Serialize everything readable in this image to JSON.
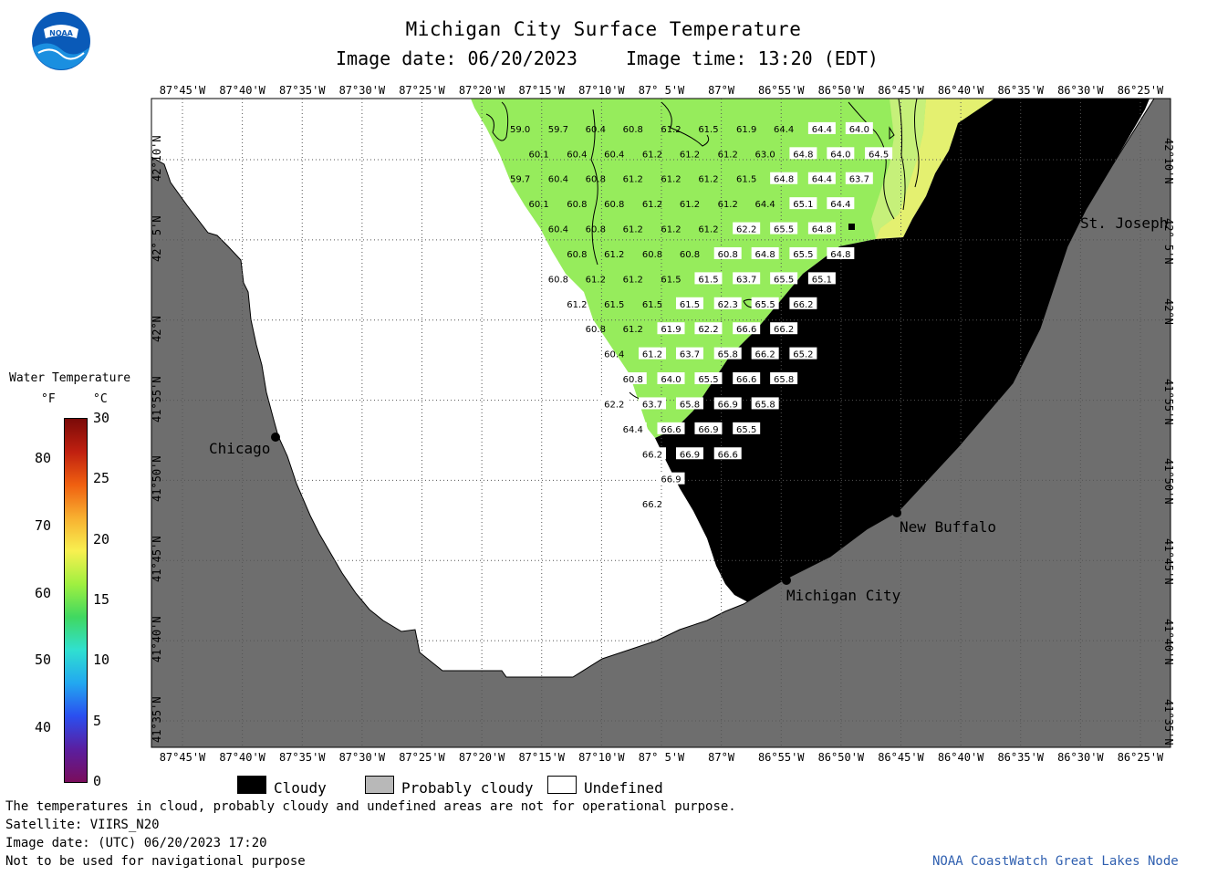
{
  "title": "Michigan City Surface Temperature",
  "subtitle": {
    "date": "Image date: 06/20/2023",
    "time": "Image time: 13:20 (EDT)"
  },
  "logo_text": "NOAA",
  "lon_labels": [
    "87°45'W",
    "87°40'W",
    "87°35'W",
    "87°30'W",
    "87°25'W",
    "87°20'W",
    "87°15'W",
    "87°10'W",
    "87° 5'W",
    "87°W",
    "86°55'W",
    "86°50'W",
    "86°45'W",
    "86°40'W",
    "86°35'W",
    "86°30'W",
    "86°25'W"
  ],
  "lat_labels": [
    "42°10'N",
    "42° 5'N",
    "42°N",
    "41°55'N",
    "41°50'N",
    "41°45'N",
    "41°40'N",
    "41°35'N"
  ],
  "legend": {
    "title": "Water Temperature",
    "unit_f": "°F",
    "unit_c": "°C",
    "f_ticks": [
      "80",
      "70",
      "60",
      "50",
      "40"
    ],
    "c_ticks": [
      "30",
      "25",
      "20",
      "15",
      "10",
      "5",
      "0"
    ],
    "colors": [
      "#7a0d5c",
      "#5a1fa0",
      "#2a4ff0",
      "#22a8f0",
      "#30e0d0",
      "#40d860",
      "#a0f040",
      "#f8f050",
      "#f8b030",
      "#f06010",
      "#c02010",
      "#7a0a08"
    ]
  },
  "key": {
    "cloudy": "Cloudy",
    "probably_cloudy": "Probably cloudy",
    "undefined": "Undefined"
  },
  "cities": [
    "Chicago",
    "St. Joseph",
    "New Buffalo",
    "Michigan City"
  ],
  "notes": [
    "The temperatures in cloud, probably cloudy and undefined areas are not for operational purpose.",
    "Satellite: VIIRS_N20",
    "Image date: (UTC) 06/20/2023  17:20",
    "Not to be used for navigational purpose"
  ],
  "credit": "NOAA CoastWatch Great Lakes Node",
  "temps": [
    {
      "v": "59.0",
      "c": "g",
      "lon": -87.28,
      "lat": 42.199
    },
    {
      "v": "59.7",
      "c": "g",
      "lon": -87.227,
      "lat": 42.199
    },
    {
      "v": "60.4",
      "c": "g",
      "lon": -87.175,
      "lat": 42.199
    },
    {
      "v": "60.8",
      "c": "g",
      "lon": -87.123,
      "lat": 42.199
    },
    {
      "v": "61.2",
      "c": "g",
      "lon": -87.07,
      "lat": 42.199
    },
    {
      "v": "61.5",
      "c": "g",
      "lon": -87.018,
      "lat": 42.199
    },
    {
      "v": "61.9",
      "c": "g",
      "lon": -86.965,
      "lat": 42.199
    },
    {
      "v": "64.4",
      "c": "g",
      "lon": -86.913,
      "lat": 42.199
    },
    {
      "v": "64.4",
      "c": "b",
      "lon": -86.86,
      "lat": 42.199
    },
    {
      "v": "64.0",
      "c": "b",
      "lon": -86.808,
      "lat": 42.199
    },
    {
      "v": "60.1",
      "c": "g",
      "lon": -87.254,
      "lat": 42.173
    },
    {
      "v": "60.4",
      "c": "g",
      "lon": -87.201,
      "lat": 42.173
    },
    {
      "v": "60.4",
      "c": "g",
      "lon": -87.149,
      "lat": 42.173
    },
    {
      "v": "61.2",
      "c": "g",
      "lon": -87.096,
      "lat": 42.173
    },
    {
      "v": "61.2",
      "c": "g",
      "lon": -87.044,
      "lat": 42.173
    },
    {
      "v": "61.2",
      "c": "g",
      "lon": -86.991,
      "lat": 42.173
    },
    {
      "v": "63.0",
      "c": "g",
      "lon": -86.939,
      "lat": 42.173
    },
    {
      "v": "64.8",
      "c": "b",
      "lon": -86.886,
      "lat": 42.173
    },
    {
      "v": "64.0",
      "c": "b",
      "lon": -86.834,
      "lat": 42.173
    },
    {
      "v": "64.5",
      "c": "b",
      "lon": -86.781,
      "lat": 42.173
    },
    {
      "v": "59.7",
      "c": "g",
      "lon": -87.28,
      "lat": 42.147
    },
    {
      "v": "60.4",
      "c": "g",
      "lon": -87.227,
      "lat": 42.147
    },
    {
      "v": "60.8",
      "c": "g",
      "lon": -87.175,
      "lat": 42.147
    },
    {
      "v": "61.2",
      "c": "g",
      "lon": -87.123,
      "lat": 42.147
    },
    {
      "v": "61.2",
      "c": "g",
      "lon": -87.07,
      "lat": 42.147
    },
    {
      "v": "61.2",
      "c": "g",
      "lon": -87.018,
      "lat": 42.147
    },
    {
      "v": "61.5",
      "c": "g",
      "lon": -86.965,
      "lat": 42.147
    },
    {
      "v": "64.8",
      "c": "b",
      "lon": -86.913,
      "lat": 42.147
    },
    {
      "v": "64.4",
      "c": "b",
      "lon": -86.86,
      "lat": 42.147
    },
    {
      "v": "63.7",
      "c": "b",
      "lon": -86.808,
      "lat": 42.147
    },
    {
      "v": "60.1",
      "c": "g",
      "lon": -87.254,
      "lat": 42.121
    },
    {
      "v": "60.8",
      "c": "g",
      "lon": -87.201,
      "lat": 42.121
    },
    {
      "v": "60.8",
      "c": "g",
      "lon": -87.149,
      "lat": 42.121
    },
    {
      "v": "61.2",
      "c": "g",
      "lon": -87.096,
      "lat": 42.121
    },
    {
      "v": "61.2",
      "c": "g",
      "lon": -87.044,
      "lat": 42.121
    },
    {
      "v": "61.2",
      "c": "g",
      "lon": -86.991,
      "lat": 42.121
    },
    {
      "v": "64.4",
      "c": "g",
      "lon": -86.939,
      "lat": 42.121
    },
    {
      "v": "65.1",
      "c": "b",
      "lon": -86.886,
      "lat": 42.121
    },
    {
      "v": "64.4",
      "c": "b",
      "lon": -86.834,
      "lat": 42.121
    },
    {
      "v": "60.4",
      "c": "g",
      "lon": -87.227,
      "lat": 42.095
    },
    {
      "v": "60.8",
      "c": "g",
      "lon": -87.175,
      "lat": 42.095
    },
    {
      "v": "61.2",
      "c": "g",
      "lon": -87.123,
      "lat": 42.095
    },
    {
      "v": "61.2",
      "c": "g",
      "lon": -87.07,
      "lat": 42.095
    },
    {
      "v": "61.2",
      "c": "g",
      "lon": -87.018,
      "lat": 42.095
    },
    {
      "v": "62.2",
      "c": "b",
      "lon": -86.965,
      "lat": 42.095
    },
    {
      "v": "65.5",
      "c": "b",
      "lon": -86.913,
      "lat": 42.095
    },
    {
      "v": "64.8",
      "c": "b",
      "lon": -86.86,
      "lat": 42.095
    },
    {
      "v": "60.8",
      "c": "g",
      "lon": -87.201,
      "lat": 42.069
    },
    {
      "v": "61.2",
      "c": "g",
      "lon": -87.149,
      "lat": 42.069
    },
    {
      "v": "60.8",
      "c": "g",
      "lon": -87.096,
      "lat": 42.069
    },
    {
      "v": "60.8",
      "c": "g",
      "lon": -87.044,
      "lat": 42.069
    },
    {
      "v": "60.8",
      "c": "b",
      "lon": -86.991,
      "lat": 42.069
    },
    {
      "v": "64.8",
      "c": "b",
      "lon": -86.939,
      "lat": 42.069
    },
    {
      "v": "65.5",
      "c": "b",
      "lon": -86.886,
      "lat": 42.069
    },
    {
      "v": "64.8",
      "c": "b",
      "lon": -86.834,
      "lat": 42.069
    },
    {
      "v": "60.8",
      "c": "g",
      "lon": -87.227,
      "lat": 42.043
    },
    {
      "v": "61.2",
      "c": "g",
      "lon": -87.175,
      "lat": 42.043
    },
    {
      "v": "61.2",
      "c": "g",
      "lon": -87.123,
      "lat": 42.043
    },
    {
      "v": "61.5",
      "c": "g",
      "lon": -87.07,
      "lat": 42.043
    },
    {
      "v": "61.5",
      "c": "b",
      "lon": -87.018,
      "lat": 42.043
    },
    {
      "v": "63.7",
      "c": "b",
      "lon": -86.965,
      "lat": 42.043
    },
    {
      "v": "65.5",
      "c": "b",
      "lon": -86.913,
      "lat": 42.043
    },
    {
      "v": "65.1",
      "c": "b",
      "lon": -86.86,
      "lat": 42.043
    },
    {
      "v": "61.2",
      "c": "g",
      "lon": -87.201,
      "lat": 42.017
    },
    {
      "v": "61.5",
      "c": "g",
      "lon": -87.149,
      "lat": 42.017
    },
    {
      "v": "61.5",
      "c": "g",
      "lon": -87.096,
      "lat": 42.017
    },
    {
      "v": "61.5",
      "c": "b",
      "lon": -87.044,
      "lat": 42.017
    },
    {
      "v": "62.3",
      "c": "b",
      "lon": -86.991,
      "lat": 42.017
    },
    {
      "v": "65.5",
      "c": "b",
      "lon": -86.939,
      "lat": 42.017
    },
    {
      "v": "66.2",
      "c": "b",
      "lon": -86.886,
      "lat": 42.017
    },
    {
      "v": "60.8",
      "c": "g",
      "lon": -87.175,
      "lat": 41.991
    },
    {
      "v": "61.2",
      "c": "g",
      "lon": -87.123,
      "lat": 41.991
    },
    {
      "v": "61.9",
      "c": "b",
      "lon": -87.07,
      "lat": 41.991
    },
    {
      "v": "62.2",
      "c": "b",
      "lon": -87.018,
      "lat": 41.991
    },
    {
      "v": "66.6",
      "c": "b",
      "lon": -86.965,
      "lat": 41.991
    },
    {
      "v": "66.2",
      "c": "b",
      "lon": -86.913,
      "lat": 41.991
    },
    {
      "v": "60.4",
      "c": "g",
      "lon": -87.149,
      "lat": 41.965
    },
    {
      "v": "61.2",
      "c": "b",
      "lon": -87.096,
      "lat": 41.965
    },
    {
      "v": "63.7",
      "c": "b",
      "lon": -87.044,
      "lat": 41.965
    },
    {
      "v": "65.8",
      "c": "b",
      "lon": -86.991,
      "lat": 41.965
    },
    {
      "v": "66.2",
      "c": "b",
      "lon": -86.939,
      "lat": 41.965
    },
    {
      "v": "65.2",
      "c": "b",
      "lon": -86.886,
      "lat": 41.965
    },
    {
      "v": "60.8",
      "c": "b",
      "lon": -87.123,
      "lat": 41.939
    },
    {
      "v": "64.0",
      "c": "b",
      "lon": -87.07,
      "lat": 41.939
    },
    {
      "v": "65.5",
      "c": "b",
      "lon": -87.018,
      "lat": 41.939
    },
    {
      "v": "66.6",
      "c": "b",
      "lon": -86.965,
      "lat": 41.939
    },
    {
      "v": "65.8",
      "c": "b",
      "lon": -86.913,
      "lat": 41.939
    },
    {
      "v": "62.2",
      "c": "b",
      "lon": -87.149,
      "lat": 41.913
    },
    {
      "v": "63.7",
      "c": "b",
      "lon": -87.096,
      "lat": 41.913
    },
    {
      "v": "65.8",
      "c": "b",
      "lon": -87.044,
      "lat": 41.913
    },
    {
      "v": "66.9",
      "c": "b",
      "lon": -86.991,
      "lat": 41.913
    },
    {
      "v": "65.8",
      "c": "b",
      "lon": -86.939,
      "lat": 41.913
    },
    {
      "v": "64.4",
      "c": "b",
      "lon": -87.123,
      "lat": 41.887
    },
    {
      "v": "66.6",
      "c": "b",
      "lon": -87.07,
      "lat": 41.887
    },
    {
      "v": "66.9",
      "c": "b",
      "lon": -87.018,
      "lat": 41.887
    },
    {
      "v": "65.5",
      "c": "b",
      "lon": -86.965,
      "lat": 41.887
    },
    {
      "v": "66.2",
      "c": "b",
      "lon": -87.096,
      "lat": 41.861
    },
    {
      "v": "66.9",
      "c": "b",
      "lon": -87.044,
      "lat": 41.861
    },
    {
      "v": "66.6",
      "c": "b",
      "lon": -86.991,
      "lat": 41.861
    },
    {
      "v": "66.9",
      "c": "b",
      "lon": -87.07,
      "lat": 41.835
    },
    {
      "v": "66.2",
      "c": "b",
      "lon": -87.096,
      "lat": 41.809
    }
  ]
}
